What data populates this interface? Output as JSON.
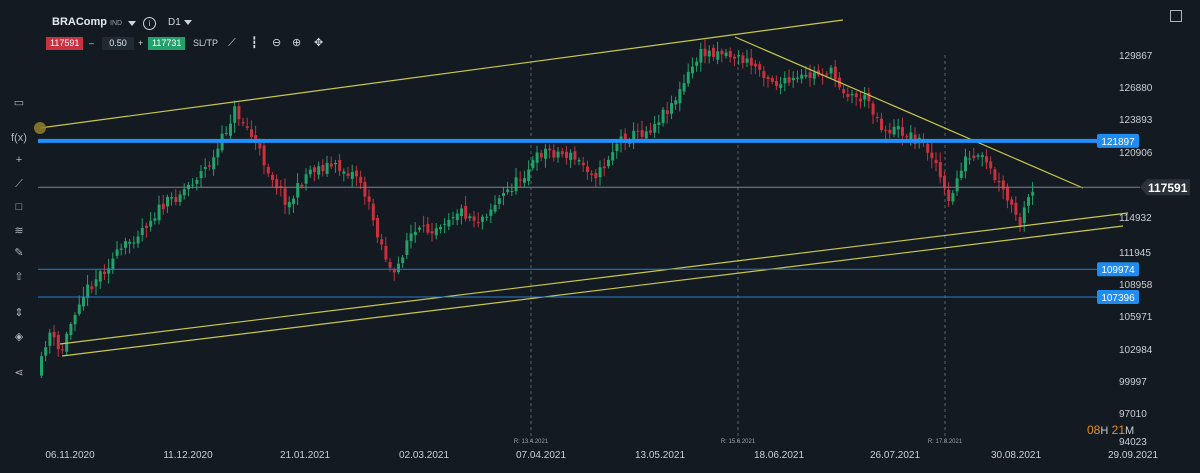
{
  "symbol": {
    "name": "BRAComp",
    "type": "IND"
  },
  "timeframe": "D1",
  "trade": {
    "sell": "117591",
    "minus": "–",
    "quantity": "0.50",
    "plus": "+",
    "buy": "117731",
    "sltp": "SL/TP"
  },
  "icons": {
    "top": [
      "line-chart-icon",
      "candlestick-icon",
      "zoom-out-icon",
      "zoom-in-icon",
      "crosshair-icon"
    ],
    "sidebar": [
      "panel-icon",
      "function-icon",
      "crosshair-icon",
      "trendline-icon",
      "rectangle-icon",
      "fibonacci-icon",
      "pencil-icon",
      "arrow-icon",
      "measure-icon",
      "layers-icon",
      "share-icon"
    ]
  },
  "colors": {
    "bull": "#22a16a",
    "bear": "#c8313f",
    "trendline": "#c9c84a",
    "level_thick": "#1e90ff",
    "level_thin": "#2a7bd0",
    "price": "#7c838b"
  },
  "y_axis": [
    "129867",
    "126880",
    "123893",
    "120906",
    "117591",
    "114932",
    "111945",
    "108958",
    "105971",
    "102984",
    "99997",
    "97010",
    "94023"
  ],
  "x_axis": [
    "06.11.2020",
    "11.12.2020",
    "21.01.2021",
    "02.03.2021",
    "07.04.2021",
    "13.05.2021",
    "18.06.2021",
    "26.07.2021",
    "30.08.2021",
    "29.09.2021"
  ],
  "levels": [
    {
      "label": "121897",
      "value": 121897,
      "style": "thick"
    },
    {
      "label": "109974",
      "value": 109974,
      "style": "thin"
    },
    {
      "label": "107396",
      "value": 107396,
      "style": "thin"
    }
  ],
  "current_price": {
    "label": "117591",
    "value": 117591
  },
  "rollovers": [
    "R: 13.4.2021",
    "R: 15.6.2021",
    "R: 17.8.2021"
  ],
  "timer": {
    "h": "08",
    "h_unit": "H",
    "m": "21",
    "m_unit": "M"
  }
}
